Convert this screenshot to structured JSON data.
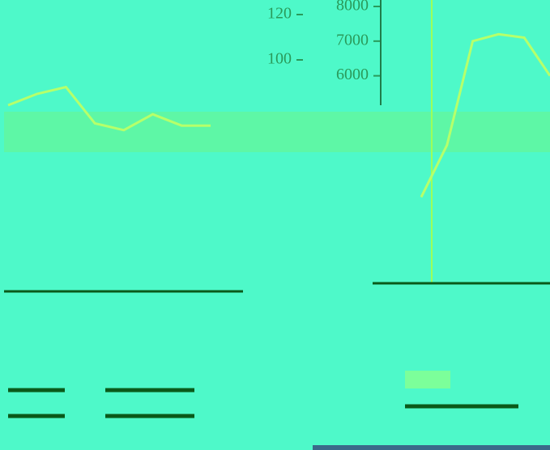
{
  "chart_data": [
    {
      "type": "line",
      "categories": [
        null,
        null,
        null,
        null,
        null,
        null,
        null,
        null
      ],
      "values": [
        80,
        85,
        88,
        72,
        69,
        76,
        71,
        71
      ],
      "color": "#b6ff6a",
      "ylim": [
        60,
        125
      ],
      "yticks": [
        100,
        120
      ]
    },
    {
      "type": "line",
      "categories": [
        null,
        null,
        null,
        null,
        null,
        null
      ],
      "values": [
        2500,
        4000,
        7000,
        7200,
        7100,
        6000
      ],
      "color": "#b6ff6a",
      "ylim": [
        2000,
        8100
      ],
      "yticks": [
        6000,
        7000,
        8000
      ]
    }
  ]
}
